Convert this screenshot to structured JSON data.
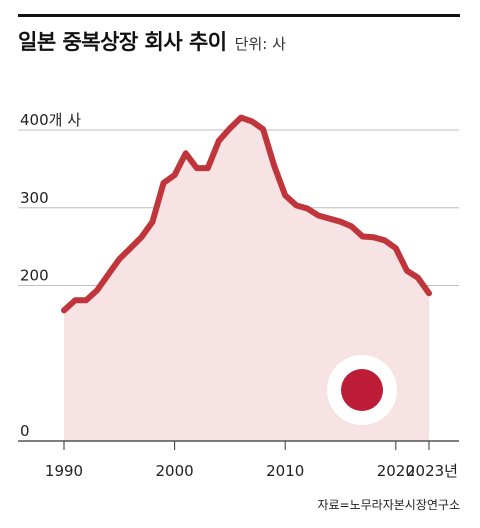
{
  "header": {
    "title": "일본 중복상장 회사 추이",
    "unit": "단위: 사"
  },
  "source": "자료=노무라자본시장연구소",
  "colors": {
    "line": "#c0343c",
    "area": "#f8e3e4",
    "grid": "#bfbfbf",
    "axis": "#333333",
    "flag_sun": "#bc1c35",
    "flag_field": "#ffffff",
    "text": "#222222"
  },
  "icons": {
    "flag": "japan-flag-icon"
  },
  "chart_data": {
    "type": "area",
    "title": "일본 중복상장 회사 추이",
    "unit": "단위: 사",
    "xlabel": "",
    "ylabel": "",
    "xlim": [
      1990,
      2023
    ],
    "ylim": [
      0,
      420
    ],
    "y_ticks": [
      {
        "value": 0,
        "label": "0"
      },
      {
        "value": 200,
        "label": "200"
      },
      {
        "value": 300,
        "label": "300"
      },
      {
        "value": 400,
        "label": "400개 사"
      }
    ],
    "x_ticks": [
      {
        "value": 1990,
        "label": "1990"
      },
      {
        "value": 2000,
        "label": "2000"
      },
      {
        "value": 2010,
        "label": "2010"
      },
      {
        "value": 2020,
        "label": "2020"
      },
      {
        "value": 2023,
        "label": "2023년"
      }
    ],
    "grid": true,
    "x": [
      1990,
      1991,
      1992,
      1993,
      1994,
      1995,
      1996,
      1997,
      1998,
      1999,
      2000,
      2001,
      2002,
      2003,
      2004,
      2005,
      2006,
      2007,
      2008,
      2009,
      2010,
      2011,
      2012,
      2013,
      2014,
      2015,
      2016,
      2017,
      2018,
      2019,
      2020,
      2021,
      2022,
      2023
    ],
    "values": [
      168,
      181,
      181,
      194,
      214,
      234,
      248,
      262,
      282,
      332,
      342,
      370,
      351,
      351,
      386,
      402,
      416,
      411,
      401,
      354,
      316,
      303,
      299,
      290,
      286,
      282,
      276,
      263,
      262,
      258,
      248,
      219,
      210,
      190
    ]
  }
}
